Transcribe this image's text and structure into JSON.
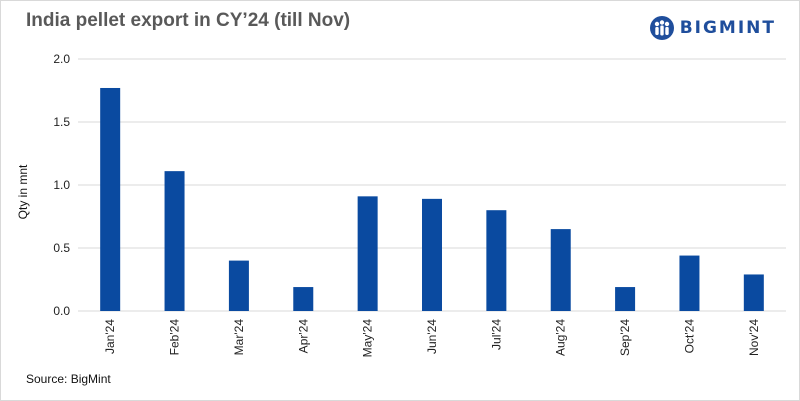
{
  "header": {
    "title": "India pellet export in CY’24 (till Nov)",
    "logo_text": "BIGMINT",
    "logo_icon": "bigmint-globe-logo-icon"
  },
  "footer": {
    "source": "Source: BigMint"
  },
  "colors": {
    "bar": "#0a4aa0",
    "grid": "#d9d9d9",
    "brand": "#1f4e9c"
  },
  "chart_data": {
    "type": "bar",
    "title": "India pellet export in CY’24 (till Nov)",
    "xlabel": "",
    "ylabel": "Qty in mnt",
    "ylim": [
      0,
      2.0
    ],
    "yticks": [
      "0.0",
      "0.5",
      "1.0",
      "1.5",
      "2.0"
    ],
    "grid": true,
    "legend": "none",
    "categories": [
      "Jan'24",
      "Feb'24",
      "Mar'24",
      "Apr'24",
      "May'24",
      "Jun'24",
      "Jul'24",
      "Aug'24",
      "Sep'24",
      "Oct'24",
      "Nov'24"
    ],
    "values": [
      1.77,
      1.11,
      0.4,
      0.19,
      0.91,
      0.89,
      0.8,
      0.65,
      0.19,
      0.44,
      0.29
    ]
  }
}
